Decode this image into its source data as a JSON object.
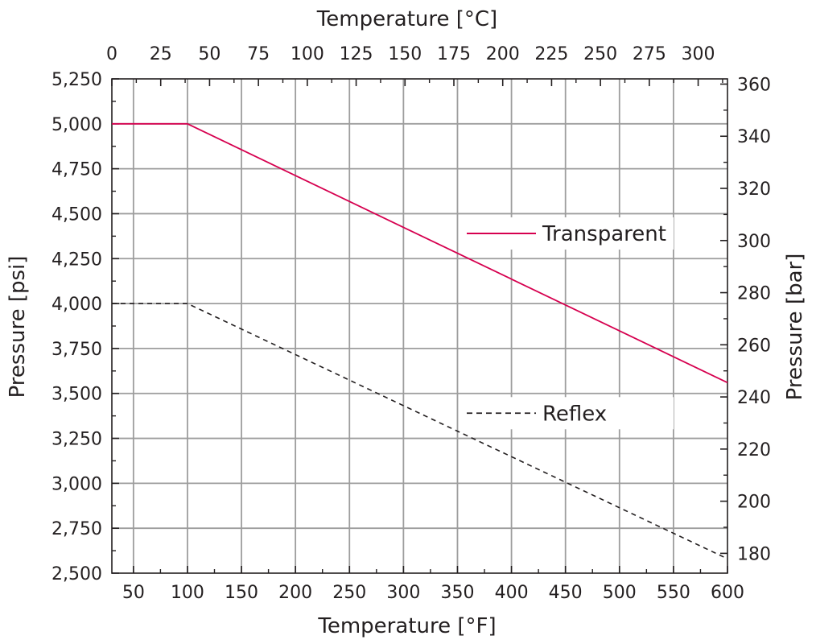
{
  "chart_data": {
    "type": "line",
    "x_bottom": {
      "label": "Temperature [°F]",
      "range": [
        30,
        600
      ],
      "ticks": [
        50,
        100,
        150,
        200,
        250,
        300,
        350,
        400,
        450,
        500,
        550,
        600
      ],
      "tick_labels": [
        "50",
        "100",
        "150",
        "200",
        "250",
        "300",
        "350",
        "400",
        "450",
        "500",
        "550",
        "600"
      ]
    },
    "x_top": {
      "label": "Temperature [°C]",
      "range": [
        0,
        315
      ],
      "ticks": [
        0,
        25,
        50,
        75,
        100,
        125,
        150,
        175,
        200,
        225,
        250,
        275,
        300
      ],
      "tick_labels": [
        "0",
        "25",
        "50",
        "75",
        "100",
        "125",
        "150",
        "175",
        "200",
        "225",
        "250",
        "275",
        "300"
      ]
    },
    "y_left": {
      "label": "Pressure [psi]",
      "range": [
        2500,
        5250
      ],
      "ticks": [
        2500,
        2750,
        3000,
        3250,
        3500,
        3750,
        4000,
        4250,
        4500,
        4750,
        5000,
        5250
      ],
      "tick_labels": [
        "2,500",
        "2,750",
        "3,000",
        "3,250",
        "3,500",
        "3,750",
        "4,000",
        "4,250",
        "4,500",
        "4,750",
        "5,000",
        "5,250"
      ]
    },
    "y_right": {
      "label": "Pressure [bar]",
      "range": [
        172.4,
        362
      ],
      "ticks": [
        180,
        200,
        220,
        240,
        260,
        280,
        300,
        320,
        340,
        360
      ],
      "tick_labels": [
        "180",
        "200",
        "220",
        "240",
        "260",
        "280",
        "300",
        "320",
        "340",
        "360"
      ]
    },
    "grid": true,
    "series": [
      {
        "name": "Transparent",
        "color": "#d6004f",
        "dash": "solid",
        "x": [
          30,
          100,
          600
        ],
        "y": [
          5000,
          5000,
          3560
        ]
      },
      {
        "name": "Reflex",
        "color": "#231f20",
        "dash": "dashed",
        "x": [
          30,
          100,
          600
        ],
        "y": [
          4000,
          4000,
          2580
        ]
      }
    ],
    "legend_placement": "inside-right"
  }
}
